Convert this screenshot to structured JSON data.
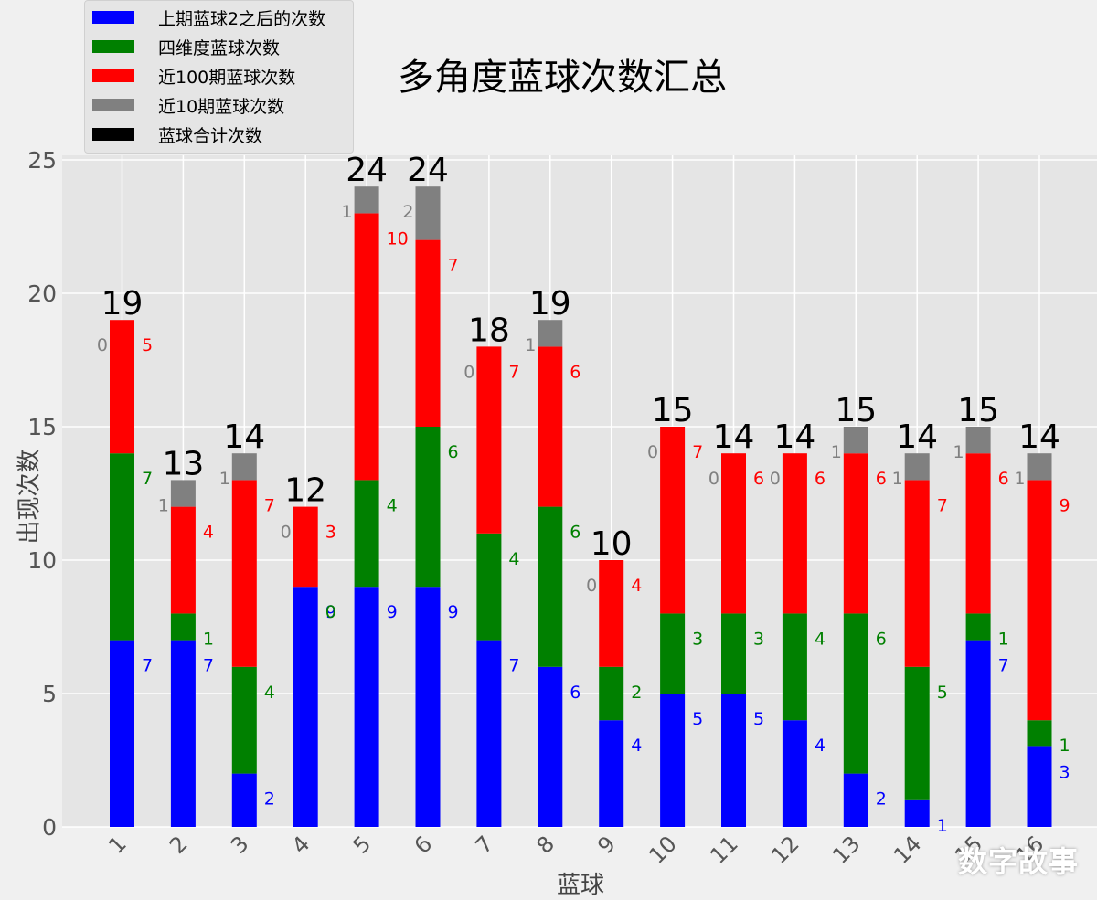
{
  "chart_data": {
    "type": "bar",
    "title": "多角度蓝球次数汇总",
    "xlabel": "蓝球",
    "ylabel": "出现次数",
    "categories": [
      "1",
      "2",
      "3",
      "4",
      "5",
      "6",
      "7",
      "8",
      "9",
      "10",
      "11",
      "12",
      "13",
      "14",
      "15",
      "16"
    ],
    "ylim": [
      0,
      25
    ],
    "yticks": [
      0,
      5,
      10,
      15,
      20,
      25
    ],
    "grid": true,
    "legend_position": "top-left",
    "series": [
      {
        "name": "上期蓝球2之后的次数",
        "color": "#0000ff",
        "values": [
          7,
          7,
          2,
          9,
          9,
          9,
          7,
          6,
          4,
          5,
          5,
          4,
          2,
          1,
          7,
          3
        ]
      },
      {
        "name": "四维度蓝球次数",
        "color": "#008000",
        "values": [
          7,
          1,
          4,
          0,
          4,
          6,
          4,
          6,
          2,
          3,
          3,
          4,
          6,
          5,
          1,
          1
        ]
      },
      {
        "name": "近100期蓝球次数",
        "color": "#ff0000",
        "values": [
          5,
          4,
          7,
          3,
          10,
          7,
          7,
          6,
          4,
          7,
          6,
          6,
          6,
          7,
          6,
          9
        ]
      },
      {
        "name": "近10期蓝球次数",
        "color": "#808080",
        "values": [
          0,
          1,
          1,
          0,
          1,
          2,
          0,
          1,
          0,
          0,
          0,
          0,
          1,
          1,
          1,
          1
        ]
      },
      {
        "name": "蓝球合计次数",
        "color": "#000000",
        "values": [
          19,
          13,
          14,
          12,
          24,
          24,
          18,
          19,
          10,
          15,
          14,
          14,
          15,
          14,
          15,
          14
        ]
      }
    ]
  },
  "watermark": "数字故事"
}
